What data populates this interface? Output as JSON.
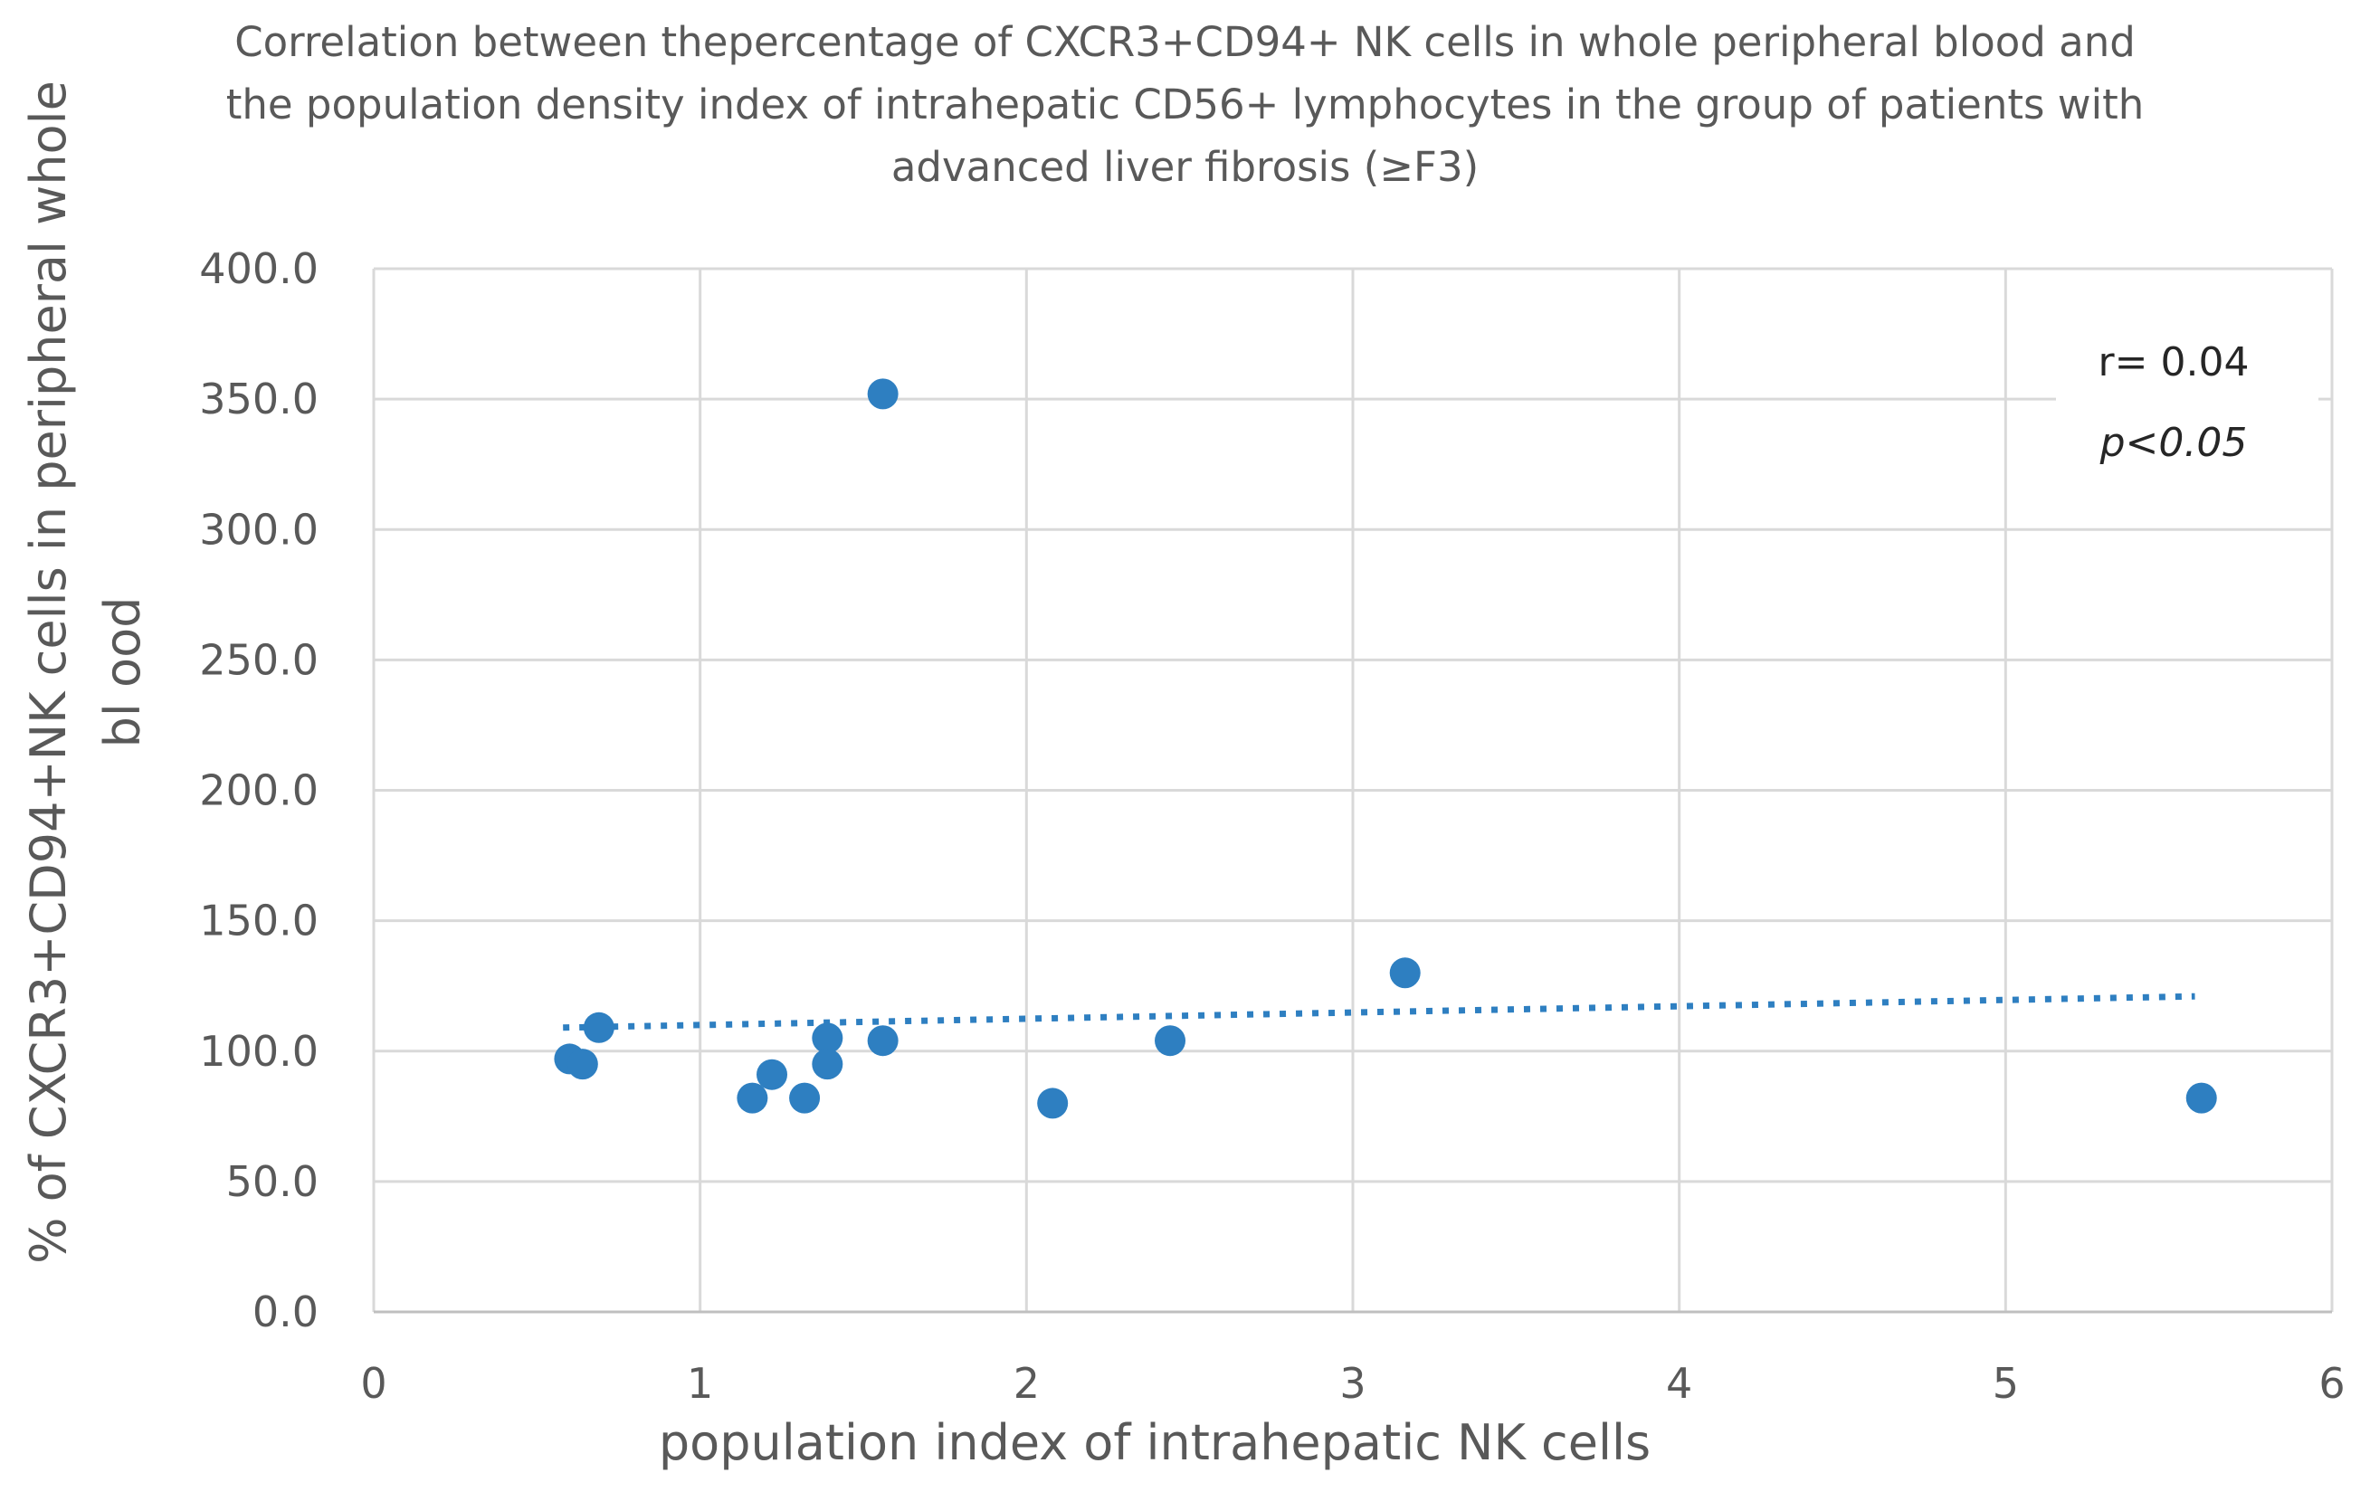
{
  "chart_data": {
    "type": "scatter",
    "title_lines": [
      "Correlation between thepercentage of CXCR3+CD94+ NK cells in whole peripheral blood and",
      "the population density index of intrahepatic CD56+ lymphocytes in the group of patients with",
      "advanced liver fibrosis (≥F3)"
    ],
    "xlabel": "population index of intrahepatic NK cells",
    "ylabel_lines": [
      "% of CXCR3+CD94+NK cells  in peripheral whole",
      "bl ood"
    ],
    "xlim": [
      0,
      6
    ],
    "ylim": [
      0,
      400
    ],
    "x_ticks": [
      0,
      1,
      2,
      3,
      4,
      5,
      6
    ],
    "x_tick_labels": [
      "0",
      "1",
      "2",
      "3",
      "4",
      "5",
      "6"
    ],
    "y_ticks": [
      0,
      50,
      100,
      150,
      200,
      250,
      300,
      350,
      400
    ],
    "y_tick_labels": [
      "0.0",
      "50.0",
      "100.0",
      "150.0",
      "200.0",
      "250.0",
      "300.0",
      "350.0",
      "400.0"
    ],
    "grid": true,
    "marker_color": "#2E7FC1",
    "points": [
      {
        "x": 1.56,
        "y": 352
      },
      {
        "x": 3.16,
        "y": 130
      },
      {
        "x": 0.69,
        "y": 109
      },
      {
        "x": 0.6,
        "y": 97
      },
      {
        "x": 0.64,
        "y": 95
      },
      {
        "x": 1.39,
        "y": 105
      },
      {
        "x": 1.39,
        "y": 95
      },
      {
        "x": 1.56,
        "y": 104
      },
      {
        "x": 2.44,
        "y": 104
      },
      {
        "x": 1.22,
        "y": 91
      },
      {
        "x": 1.16,
        "y": 82
      },
      {
        "x": 1.32,
        "y": 82
      },
      {
        "x": 2.08,
        "y": 80
      },
      {
        "x": 5.6,
        "y": 82
      }
    ],
    "trendline": {
      "x": [
        0.58,
        5.58
      ],
      "y": [
        109,
        121
      ],
      "style": "dotted",
      "color": "#2E7FC1"
    },
    "annotations": {
      "r": "r= 0.04",
      "p": "p<0.05"
    }
  }
}
